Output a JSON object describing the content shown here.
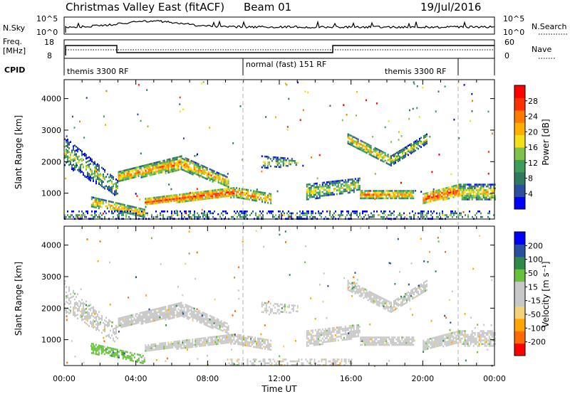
{
  "header": {
    "title": "Christmas Valley East (fitACF)",
    "beam": "Beam 01",
    "date": "19/Jul/2016"
  },
  "noise_panel": {
    "left_label": "N.Sky",
    "left_ticks": [
      "10^5",
      "10^0"
    ],
    "right_ticks": [
      "10^5",
      "10^0"
    ],
    "right_label": "N.Search"
  },
  "freq_panel": {
    "left_label_1": "Freq.",
    "left_label_2": "[MHz]",
    "left_ticks": [
      "18",
      "8"
    ],
    "right_ticks": [
      "60",
      "0"
    ],
    "right_label": "Nave"
  },
  "cpid": {
    "label": "CPID",
    "segments": [
      {
        "text": "themis 3300 RF",
        "start_h": 0,
        "end_h": 10
      },
      {
        "text": "normal (fast) 151 RF",
        "start_h": 10,
        "end_h": 22
      },
      {
        "text": "themis 3300 RF",
        "start_h": 22,
        "end_h": 24
      }
    ]
  },
  "x_axis": {
    "label": "Time UT",
    "ticks": [
      "00:00",
      "04:00",
      "08:00",
      "12:00",
      "16:00",
      "20:00",
      "00:00"
    ]
  },
  "chart_data": [
    {
      "type": "heatmap",
      "panel": "power",
      "ylabel": "Slant Range [km]",
      "xlim_hours": [
        0,
        24
      ],
      "ylim_km": [
        180,
        4600
      ],
      "yticks": [
        "1000",
        "2000",
        "3000",
        "4000"
      ],
      "colorbar": {
        "label": "Power [dB]",
        "ticks": [
          "4",
          "8",
          "12",
          "16",
          "20",
          "24",
          "28"
        ],
        "range": [
          0,
          32
        ],
        "colors": [
          "#0000ff",
          "#2b4f9e",
          "#2f7a5f",
          "#3c9e5a",
          "#7fc24a",
          "#f4e01a",
          "#ffb000",
          "#ff7a00",
          "#ff3000",
          "#ff0000"
        ]
      },
      "bands": [
        {
          "x": [
            0,
            3
          ],
          "y_start": [
            1900,
            900
          ],
          "y_end": [
            2800,
            1400
          ],
          "level": 10,
          "density": 0.55
        },
        {
          "x": [
            3,
            6.5
          ],
          "y_start": [
            1400,
            1750
          ],
          "y_end": [
            1700,
            2200
          ],
          "level": 18,
          "density": 0.9
        },
        {
          "x": [
            6.5,
            9.2
          ],
          "y_start": [
            1750,
            1200
          ],
          "y_end": [
            2200,
            1500
          ],
          "level": 16,
          "density": 0.8
        },
        {
          "x": [
            4.5,
            9.5
          ],
          "y_start": [
            650,
            900
          ],
          "y_end": [
            850,
            1200
          ],
          "level": 22,
          "density": 0.95
        },
        {
          "x": [
            9.5,
            11.5
          ],
          "y_start": [
            900,
            700
          ],
          "y_end": [
            1200,
            1000
          ],
          "level": 18,
          "density": 0.8
        },
        {
          "x": [
            1.5,
            4.5
          ],
          "y_start": [
            600,
            250
          ],
          "y_end": [
            900,
            500
          ],
          "level": 16,
          "density": 0.8
        },
        {
          "x": [
            13.5,
            16.5
          ],
          "y_start": [
            800,
            1100
          ],
          "y_end": [
            1300,
            1500
          ],
          "level": 12,
          "density": 0.7
        },
        {
          "x": [
            16.5,
            19.5
          ],
          "y_start": [
            850,
            850
          ],
          "y_end": [
            1100,
            1100
          ],
          "level": 18,
          "density": 0.9
        },
        {
          "x": [
            20,
            22
          ],
          "y_start": [
            700,
            900
          ],
          "y_end": [
            1000,
            1300
          ],
          "level": 22,
          "density": 0.9
        },
        {
          "x": [
            22,
            24
          ],
          "y_start": [
            800,
            800
          ],
          "y_end": [
            1300,
            1300
          ],
          "level": 14,
          "density": 0.75
        },
        {
          "x": [
            15.8,
            18.2
          ],
          "y_start": [
            2600,
            1900
          ],
          "y_end": [
            2900,
            2200
          ],
          "level": 16,
          "density": 0.85
        },
        {
          "x": [
            18.2,
            20.2
          ],
          "y_start": [
            1900,
            2600
          ],
          "y_end": [
            2200,
            2900
          ],
          "level": 12,
          "density": 0.75
        },
        {
          "x": [
            11,
            13
          ],
          "y_start": [
            1800,
            1900
          ],
          "y_end": [
            2200,
            2100
          ],
          "level": 10,
          "density": 0.5
        },
        {
          "x": [
            0,
            24
          ],
          "y_start": [
            200,
            200
          ],
          "y_end": [
            450,
            450
          ],
          "level": 8,
          "density": 0.35
        }
      ]
    },
    {
      "type": "heatmap",
      "panel": "velocity",
      "ylabel": "Slant Range [km]",
      "xlim_hours": [
        0,
        24
      ],
      "ylim_km": [
        180,
        4600
      ],
      "yticks": [
        "1000",
        "2000",
        "3000",
        "4000"
      ],
      "colorbar": {
        "label": "Velocity [m s⁻¹]",
        "ticks": [
          "200",
          "100",
          "50",
          "15",
          "-15",
          "-50",
          "-100",
          "-200"
        ],
        "range": [
          -250,
          250
        ],
        "colors": [
          "#ff0000",
          "#ff6a00",
          "#ffa500",
          "#f2d27a",
          "#c8c8c8",
          "#c8c8c8",
          "#66c23a",
          "#2f8a4a",
          "#2850a0",
          "#0000ff"
        ]
      },
      "bands": [
        {
          "x": [
            0,
            3
          ],
          "y_start": [
            1900,
            900
          ],
          "y_end": [
            2800,
            1400
          ],
          "level": 0,
          "density": 0.45
        },
        {
          "x": [
            3,
            6.5
          ],
          "y_start": [
            1400,
            1750
          ],
          "y_end": [
            1700,
            2200
          ],
          "level": 0,
          "density": 0.85
        },
        {
          "x": [
            6.5,
            9.2
          ],
          "y_start": [
            1750,
            1200
          ],
          "y_end": [
            2200,
            1500
          ],
          "level": 20,
          "density": 0.8
        },
        {
          "x": [
            4.5,
            9.5
          ],
          "y_start": [
            650,
            900
          ],
          "y_end": [
            850,
            1200
          ],
          "level": 0,
          "density": 0.9
        },
        {
          "x": [
            9.5,
            11.5
          ],
          "y_start": [
            900,
            700
          ],
          "y_end": [
            1200,
            1000
          ],
          "level": 0,
          "density": 0.75
        },
        {
          "x": [
            1.5,
            4.5
          ],
          "y_start": [
            600,
            250
          ],
          "y_end": [
            900,
            500
          ],
          "level": 60,
          "density": 0.7
        },
        {
          "x": [
            13.5,
            16.5
          ],
          "y_start": [
            800,
            1100
          ],
          "y_end": [
            1300,
            1500
          ],
          "level": 0,
          "density": 0.7
        },
        {
          "x": [
            16.5,
            19.5
          ],
          "y_start": [
            850,
            850
          ],
          "y_end": [
            1100,
            1100
          ],
          "level": 0,
          "density": 0.85
        },
        {
          "x": [
            20,
            22
          ],
          "y_start": [
            700,
            900
          ],
          "y_end": [
            1000,
            1300
          ],
          "level": 0,
          "density": 0.85
        },
        {
          "x": [
            22,
            24
          ],
          "y_start": [
            800,
            800
          ],
          "y_end": [
            1300,
            1300
          ],
          "level": 0,
          "density": 0.7
        },
        {
          "x": [
            15.8,
            18.2
          ],
          "y_start": [
            2600,
            1900
          ],
          "y_end": [
            2900,
            2200
          ],
          "level": 0,
          "density": 0.8
        },
        {
          "x": [
            18.2,
            20.2
          ],
          "y_start": [
            1900,
            2600
          ],
          "y_end": [
            2200,
            2900
          ],
          "level": 0,
          "density": 0.7
        },
        {
          "x": [
            11,
            13
          ],
          "y_start": [
            1800,
            1900
          ],
          "y_end": [
            2200,
            2100
          ],
          "level": 0,
          "density": 0.45
        },
        {
          "x": [
            9,
            16
          ],
          "y_start": [
            200,
            200
          ],
          "y_end": [
            400,
            400
          ],
          "level": -30,
          "density": 0.45
        }
      ]
    }
  ]
}
